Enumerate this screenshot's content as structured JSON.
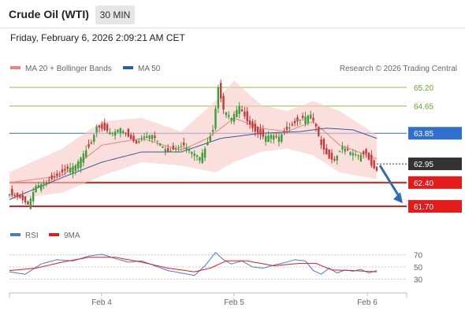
{
  "header": {
    "instrument": "Crude Oil (WTI)",
    "timeframe": "30 MIN",
    "datetime": "Friday, February 6, 2026 2:09:21 AM CET"
  },
  "credit": "Research © 2026 Trading Central",
  "colors": {
    "ma20": "#f08080",
    "ma50": "#2f5d9e",
    "band": "#f9c9c4",
    "green_level": "#8cc04a",
    "blue_level": "#2f6fd1",
    "red_level": "#e31b1b",
    "up_candle": "#3a9d3a",
    "down_candle": "#c43a3a",
    "rsi": "#4a79d3",
    "rsi_ma": "#e31b1b",
    "arrow": "#2f6db5"
  },
  "chart_data": [
    {
      "type": "candlestick",
      "timeframe": "30 MIN",
      "legend": [
        {
          "label": "MA 20 + Bollinger Bands",
          "color": "#f08080"
        },
        {
          "label": "MA 50",
          "color": "#2f5d9e"
        }
      ],
      "x_labels": [
        "Feb 4",
        "Feb 5",
        "Feb 6"
      ],
      "y_range": [
        61.4,
        65.5
      ],
      "levels": [
        {
          "label": "65.20",
          "value": 65.2,
          "kind": "resistance",
          "color": "#8cc04a"
        },
        {
          "label": "64.65",
          "value": 64.65,
          "kind": "resistance",
          "color": "#8cc04a"
        },
        {
          "label": "63.85",
          "value": 63.85,
          "kind": "pivot",
          "color": "#2f6fd1"
        },
        {
          "label": "62.95",
          "value": 62.95,
          "kind": "last price",
          "color": "#333333"
        },
        {
          "label": "62.40",
          "value": 62.4,
          "kind": "support",
          "color": "#e31b1b"
        },
        {
          "label": "61.70",
          "value": 61.7,
          "kind": "support",
          "color": "#e31b1b"
        }
      ],
      "forecast": {
        "direction": "down",
        "from": 62.95,
        "to": 61.7
      },
      "anchors": [
        [
          0,
          62.05
        ],
        [
          4,
          61.95
        ],
        [
          7,
          61.75
        ],
        [
          10,
          62.3
        ],
        [
          14,
          62.4
        ],
        [
          18,
          62.6
        ],
        [
          22,
          62.8
        ],
        [
          25,
          62.9
        ],
        [
          28,
          63.25
        ],
        [
          31,
          63.55
        ],
        [
          33,
          64.05
        ],
        [
          36,
          63.95
        ],
        [
          39,
          63.85
        ],
        [
          42,
          64.0
        ],
        [
          45,
          63.75
        ],
        [
          48,
          63.55
        ],
        [
          51,
          63.75
        ],
        [
          54,
          63.8
        ],
        [
          57,
          63.55
        ],
        [
          60,
          63.3
        ],
        [
          63,
          63.4
        ],
        [
          66,
          63.5
        ],
        [
          69,
          63.3
        ],
        [
          72,
          63.15
        ],
        [
          74,
          63.4
        ],
        [
          77,
          63.95
        ],
        [
          79,
          65.2
        ],
        [
          81,
          64.55
        ],
        [
          84,
          64.3
        ],
        [
          87,
          64.65
        ],
        [
          90,
          64.2
        ],
        [
          93,
          63.9
        ],
        [
          96,
          63.75
        ],
        [
          99,
          63.8
        ],
        [
          102,
          63.75
        ],
        [
          105,
          63.95
        ],
        [
          108,
          64.15
        ],
        [
          111,
          64.3
        ],
        [
          114,
          64.4
        ],
        [
          116,
          64.05
        ],
        [
          118,
          63.5
        ],
        [
          121,
          63.1
        ],
        [
          123,
          63.05
        ],
        [
          126,
          63.45
        ],
        [
          129,
          63.3
        ],
        [
          132,
          63.2
        ],
        [
          135,
          63.25
        ],
        [
          137,
          62.9
        ],
        [
          139,
          62.75
        ]
      ],
      "ma20": [
        [
          0,
          62.4
        ],
        [
          20,
          62.6
        ],
        [
          35,
          63.5
        ],
        [
          50,
          63.7
        ],
        [
          65,
          63.35
        ],
        [
          75,
          63.7
        ],
        [
          85,
          64.3
        ],
        [
          95,
          64.0
        ],
        [
          105,
          63.9
        ],
        [
          115,
          64.2
        ],
        [
          125,
          63.5
        ],
        [
          139,
          63.1
        ]
      ],
      "ma50": [
        [
          0,
          61.9
        ],
        [
          20,
          62.55
        ],
        [
          35,
          63.0
        ],
        [
          50,
          63.3
        ],
        [
          65,
          63.3
        ],
        [
          80,
          63.7
        ],
        [
          95,
          63.85
        ],
        [
          110,
          63.9
        ],
        [
          120,
          64.0
        ],
        [
          130,
          63.95
        ],
        [
          139,
          63.7
        ]
      ],
      "band_upper": [
        [
          0,
          62.7
        ],
        [
          20,
          63.4
        ],
        [
          35,
          64.2
        ],
        [
          50,
          64.3
        ],
        [
          65,
          63.9
        ],
        [
          78,
          64.8
        ],
        [
          85,
          65.4
        ],
        [
          95,
          64.7
        ],
        [
          105,
          64.5
        ],
        [
          115,
          64.8
        ],
        [
          125,
          64.5
        ],
        [
          139,
          63.8
        ]
      ],
      "band_lower": [
        [
          0,
          61.9
        ],
        [
          20,
          62.1
        ],
        [
          35,
          62.6
        ],
        [
          50,
          63.0
        ],
        [
          65,
          62.9
        ],
        [
          78,
          62.7
        ],
        [
          85,
          63.0
        ],
        [
          95,
          63.3
        ],
        [
          105,
          63.4
        ],
        [
          115,
          63.2
        ],
        [
          125,
          62.7
        ],
        [
          139,
          62.5
        ]
      ]
    },
    {
      "type": "line",
      "legend": [
        {
          "label": "RSI",
          "color": "#4a79d3"
        },
        {
          "label": "9MA",
          "color": "#e31b1b"
        }
      ],
      "y_range": [
        20,
        80
      ],
      "y_ticks": [
        70,
        50,
        30
      ],
      "rsi": [
        [
          0,
          42
        ],
        [
          6,
          38
        ],
        [
          12,
          55
        ],
        [
          18,
          62
        ],
        [
          24,
          60
        ],
        [
          30,
          68
        ],
        [
          35,
          71
        ],
        [
          40,
          64
        ],
        [
          45,
          58
        ],
        [
          50,
          60
        ],
        [
          55,
          52
        ],
        [
          60,
          44
        ],
        [
          65,
          40
        ],
        [
          70,
          36
        ],
        [
          74,
          52
        ],
        [
          78,
          74
        ],
        [
          81,
          62
        ],
        [
          84,
          55
        ],
        [
          88,
          60
        ],
        [
          92,
          50
        ],
        [
          96,
          48
        ],
        [
          100,
          53
        ],
        [
          104,
          57
        ],
        [
          108,
          62
        ],
        [
          112,
          60
        ],
        [
          115,
          44
        ],
        [
          118,
          38
        ],
        [
          121,
          48
        ],
        [
          124,
          40
        ],
        [
          127,
          45
        ],
        [
          130,
          43
        ],
        [
          133,
          46
        ],
        [
          136,
          40
        ],
        [
          139,
          44
        ]
      ],
      "rsi_ma": [
        [
          0,
          44
        ],
        [
          10,
          48
        ],
        [
          20,
          58
        ],
        [
          30,
          66
        ],
        [
          40,
          66
        ],
        [
          50,
          58
        ],
        [
          60,
          48
        ],
        [
          70,
          42
        ],
        [
          76,
          48
        ],
        [
          82,
          60
        ],
        [
          90,
          60
        ],
        [
          100,
          52
        ],
        [
          110,
          56
        ],
        [
          116,
          56
        ],
        [
          122,
          45
        ],
        [
          130,
          44
        ],
        [
          139,
          42
        ]
      ]
    }
  ]
}
